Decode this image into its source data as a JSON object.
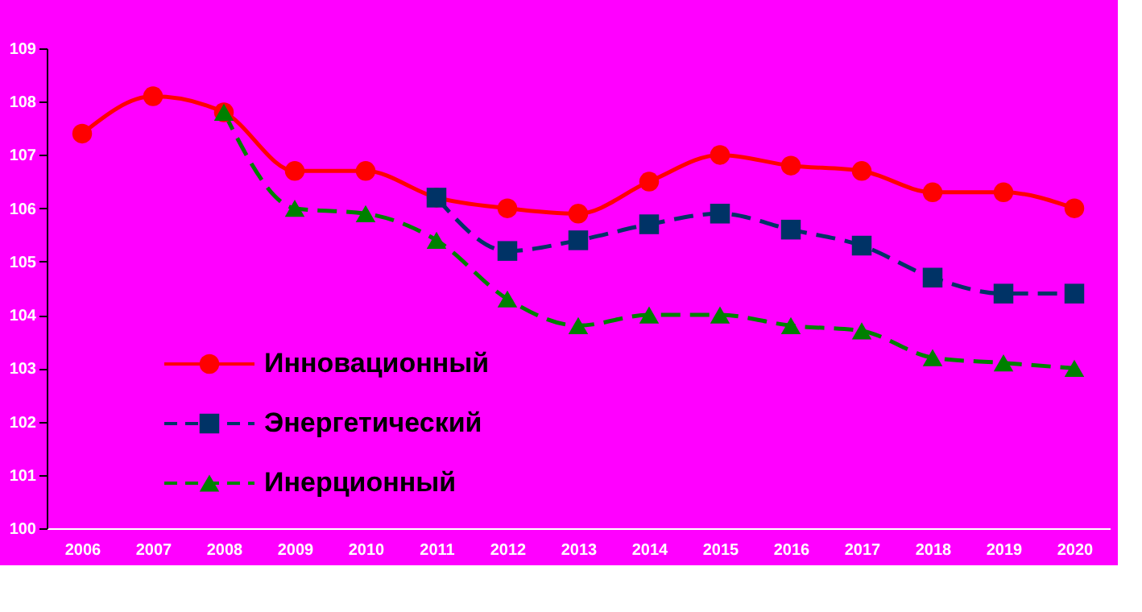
{
  "chart_data": {
    "type": "line",
    "categories": [
      "2006",
      "2007",
      "2008",
      "2009",
      "2010",
      "2011",
      "2012",
      "2013",
      "2014",
      "2015",
      "2016",
      "2017",
      "2018",
      "2019",
      "2020"
    ],
    "series": [
      {
        "name": "Инновационный",
        "color": "#ff0000",
        "marker": "circle",
        "line_style": "solid",
        "values": [
          107.4,
          108.1,
          107.8,
          106.7,
          106.7,
          106.2,
          106.0,
          105.9,
          106.5,
          107.0,
          106.8,
          106.7,
          106.3,
          106.3,
          106.0
        ]
      },
      {
        "name": "Энергетический",
        "color": "#003366",
        "marker": "square",
        "line_style": "dashed",
        "values": [
          null,
          null,
          null,
          null,
          null,
          106.2,
          105.2,
          105.4,
          105.7,
          105.9,
          105.6,
          105.3,
          104.7,
          104.4,
          104.4
        ]
      },
      {
        "name": "Инерционный",
        "color": "#008000",
        "marker": "triangle",
        "line_style": "dashed",
        "values": [
          null,
          null,
          107.8,
          106.0,
          105.9,
          105.4,
          104.3,
          103.8,
          104.0,
          104.0,
          103.8,
          103.7,
          103.2,
          103.1,
          103.0
        ]
      }
    ],
    "ylim": [
      100,
      109
    ],
    "yticks": [
      100,
      101,
      102,
      103,
      104,
      105,
      106,
      107,
      108,
      109
    ],
    "grid": false,
    "legend": "bottom left"
  }
}
